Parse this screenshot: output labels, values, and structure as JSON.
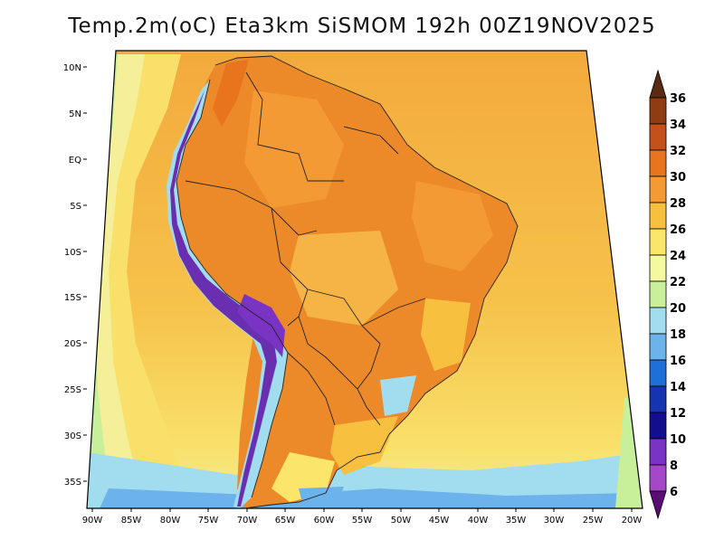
{
  "title": "Temp.2m(oC) Eta3km SiSMOM 192h 00Z19NOV2025",
  "lat_labels": [
    "10N",
    "5N",
    "EQ",
    "5S",
    "10S",
    "15S",
    "20S",
    "25S",
    "30S",
    "35S"
  ],
  "lon_labels": [
    "90W",
    "85W",
    "80W",
    "75W",
    "70W",
    "65W",
    "60W",
    "55W",
    "50W",
    "45W",
    "40W",
    "35W",
    "30W",
    "25W",
    "20W"
  ],
  "colorbar": {
    "labels": [
      "36",
      "34",
      "32",
      "30",
      "28",
      "26",
      "24",
      "22",
      "20",
      "18",
      "16",
      "14",
      "12",
      "10",
      "8",
      "6"
    ],
    "colors": [
      "#5a2a12",
      "#8e3d12",
      "#c4501a",
      "#e8741e",
      "#f39a34",
      "#f7c03e",
      "#fbe66b",
      "#f4f8a0",
      "#c8ef9a",
      "#a2dcef",
      "#6bb3ea",
      "#1f6fd8",
      "#1734b0",
      "#120e8e",
      "#7a34c4",
      "#a548c8",
      "#5a0d72"
    ]
  },
  "colors": {
    "ocean_warm": "#f4b040",
    "ocean_mid": "#f8d860",
    "ocean_cool": "#f4f29a",
    "coast_green": "#c8ef9a",
    "cold_blue": "#6bb3ea",
    "andes": "#6a2fb0",
    "land_hot": "#ec8a2a"
  }
}
